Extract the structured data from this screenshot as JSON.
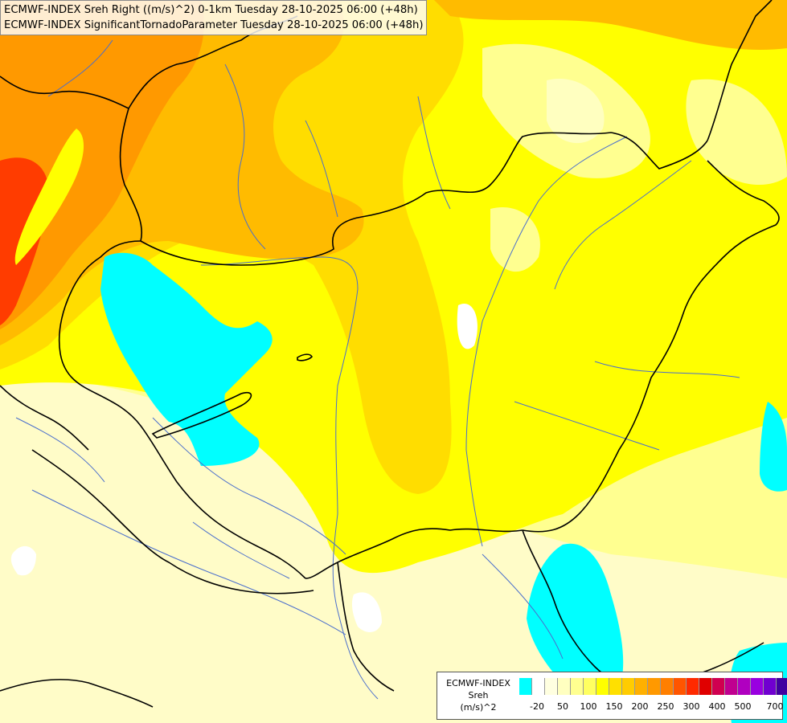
{
  "title": {
    "line1": "ECMWF-INDEX Sreh Right ((m/s)^2) 0-1km Tuesday 28-10-2025 06:00 (+48h)",
    "line2": "ECMWF-INDEX SignificantTornadoParameter Tuesday 28-10-2025 06:00 (+48h)"
  },
  "legend": {
    "title1": "ECMWF-INDEX",
    "title2": "Sreh",
    "title3": "(m/s)^2",
    "colors": [
      "#00ffff",
      "#ffffff",
      "#ffffe0",
      "#ffffc0",
      "#ffff90",
      "#ffff60",
      "#ffff00",
      "#ffe000",
      "#ffcc00",
      "#ffb000",
      "#ff9900",
      "#ff7f00",
      "#ff5500",
      "#ff2a00",
      "#e00000",
      "#d00050",
      "#c00090",
      "#b000c0",
      "#9900e0",
      "#7000d0",
      "#4000a0",
      "#000080"
    ],
    "ticks": [
      "-20",
      "50",
      "100",
      "150",
      "200",
      "250",
      "300",
      "400",
      "500",
      "700"
    ]
  },
  "map": {
    "colors": {
      "cyan": "#00ffff",
      "pale": "#fffcc8",
      "lightYellow": "#ffff90",
      "yellow": "#ffff00",
      "gold": "#ffdd00",
      "amber": "#ffbb00",
      "orange": "#ff9900",
      "red": "#ff3c00",
      "border": "#000000",
      "river": "#4a6ecc"
    }
  }
}
